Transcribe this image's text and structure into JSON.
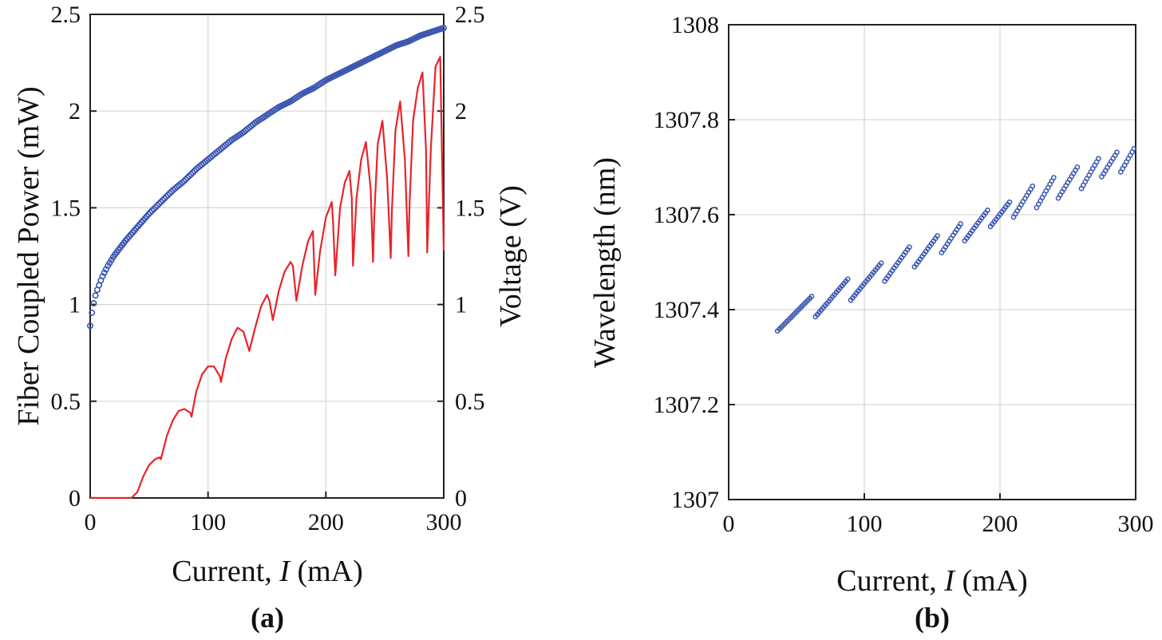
{
  "chart_data": [
    {
      "id": "a",
      "type": "line",
      "panel_label": "(a)",
      "xlabel_prefix": "Current, ",
      "xlabel_var": "I",
      "xlabel_suffix": " (mA)",
      "ylabel": "Fiber Coupled Power (mW)",
      "y2label": "Voltage (V)",
      "xlim": [
        0,
        300
      ],
      "ylim": [
        0,
        2.5
      ],
      "y2lim": [
        0,
        2.5
      ],
      "xticks": [
        0,
        100,
        200,
        300
      ],
      "yticks": [
        0,
        0.5,
        1,
        1.5,
        2,
        2.5
      ],
      "y2ticks": [
        0,
        0.5,
        1,
        1.5,
        2,
        2.5
      ],
      "ytick_labels": [
        "0",
        "0.5",
        "1",
        "1.5",
        "2",
        "2.5"
      ],
      "y2tick_labels": [
        "0",
        "0.5",
        "1",
        "1.5",
        "2",
        "2.5"
      ],
      "grid": true,
      "colors": {
        "voltage": "#3a56b0",
        "power": "#e8242a"
      },
      "series": [
        {
          "axis": "right",
          "style": "markers",
          "color": "#3a56b0",
          "x": [
            0,
            2,
            5,
            10,
            15,
            20,
            30,
            40,
            50,
            60,
            70,
            80,
            90,
            100,
            110,
            120,
            130,
            140,
            150,
            160,
            170,
            180,
            190,
            200,
            210,
            220,
            230,
            240,
            250,
            260,
            270,
            280,
            290,
            300
          ],
          "y": [
            0.89,
            0.98,
            1.06,
            1.14,
            1.2,
            1.25,
            1.33,
            1.4,
            1.47,
            1.53,
            1.59,
            1.64,
            1.7,
            1.75,
            1.8,
            1.85,
            1.89,
            1.94,
            1.98,
            2.02,
            2.05,
            2.09,
            2.12,
            2.16,
            2.19,
            2.22,
            2.25,
            2.28,
            2.31,
            2.34,
            2.36,
            2.39,
            2.41,
            2.43
          ]
        },
        {
          "axis": "left",
          "style": "line",
          "color": "#e8242a",
          "x": [
            0,
            35,
            40,
            45,
            50,
            55,
            59,
            60,
            65,
            70,
            75,
            80,
            85,
            86,
            90,
            95,
            100,
            105,
            110,
            111,
            115,
            120,
            125,
            130,
            133,
            135,
            140,
            145,
            150,
            152,
            155,
            160,
            165,
            170,
            172,
            175,
            180,
            185,
            189,
            191,
            195,
            200,
            205,
            206,
            208,
            212,
            216,
            220,
            222,
            223,
            226,
            230,
            234,
            238,
            240,
            241,
            244,
            248,
            252,
            255,
            256,
            259,
            263,
            267,
            270,
            271,
            274,
            278,
            282,
            285,
            286,
            289,
            293,
            297,
            300
          ],
          "y": [
            0,
            0,
            0.03,
            0.11,
            0.17,
            0.2,
            0.21,
            0.2,
            0.32,
            0.4,
            0.45,
            0.46,
            0.44,
            0.42,
            0.55,
            0.64,
            0.68,
            0.68,
            0.63,
            0.6,
            0.72,
            0.82,
            0.88,
            0.86,
            0.8,
            0.76,
            0.88,
            0.99,
            1.05,
            1.02,
            0.92,
            1.07,
            1.17,
            1.22,
            1.2,
            1.02,
            1.2,
            1.33,
            1.38,
            1.05,
            1.27,
            1.45,
            1.53,
            1.44,
            1.15,
            1.5,
            1.63,
            1.69,
            1.55,
            1.2,
            1.55,
            1.75,
            1.84,
            1.6,
            1.22,
            1.45,
            1.83,
            1.95,
            1.65,
            1.24,
            1.48,
            1.9,
            2.05,
            1.75,
            1.25,
            1.52,
            1.95,
            2.12,
            2.2,
            1.8,
            1.27,
            1.8,
            2.23,
            2.28,
            1.28
          ]
        }
      ]
    },
    {
      "id": "b",
      "type": "scatter",
      "panel_label": "(b)",
      "xlabel_prefix": "Current, ",
      "xlabel_var": "I",
      "xlabel_suffix": " (mA)",
      "ylabel": "Wavelength (nm)",
      "xlim": [
        0,
        300
      ],
      "ylim": [
        1307,
        1308
      ],
      "xticks": [
        0,
        100,
        200,
        300
      ],
      "yticks": [
        1307,
        1307.2,
        1307.4,
        1307.6,
        1307.8,
        1308
      ],
      "ytick_labels": [
        "1307",
        "1307.2",
        "1307.4",
        "1307.6",
        "1307.8",
        "1308"
      ],
      "grid": true,
      "colors": {
        "markers": "#3a56b0"
      },
      "segments": [
        {
          "x": [
            36,
            62
          ],
          "y": [
            1307.355,
            1307.43
          ]
        },
        {
          "x": [
            64,
            88
          ],
          "y": [
            1307.385,
            1307.465
          ]
        },
        {
          "x": [
            90,
            113
          ],
          "y": [
            1307.42,
            1307.5
          ]
        },
        {
          "x": [
            115,
            134
          ],
          "y": [
            1307.46,
            1307.535
          ]
        },
        {
          "x": [
            137,
            155
          ],
          "y": [
            1307.49,
            1307.56
          ]
        },
        {
          "x": [
            157,
            172
          ],
          "y": [
            1307.52,
            1307.585
          ]
        },
        {
          "x": [
            174,
            191
          ],
          "y": [
            1307.545,
            1307.61
          ]
        },
        {
          "x": [
            193,
            208
          ],
          "y": [
            1307.575,
            1307.63
          ]
        },
        {
          "x": [
            210,
            224
          ],
          "y": [
            1307.595,
            1307.66
          ]
        },
        {
          "x": [
            227,
            240
          ],
          "y": [
            1307.615,
            1307.68
          ]
        },
        {
          "x": [
            243,
            257
          ],
          "y": [
            1307.635,
            1307.7
          ]
        },
        {
          "x": [
            260,
            273
          ],
          "y": [
            1307.655,
            1307.72
          ]
        },
        {
          "x": [
            275,
            287
          ],
          "y": [
            1307.68,
            1307.735
          ]
        },
        {
          "x": [
            289,
            300
          ],
          "y": [
            1307.69,
            1307.745
          ]
        }
      ]
    }
  ]
}
